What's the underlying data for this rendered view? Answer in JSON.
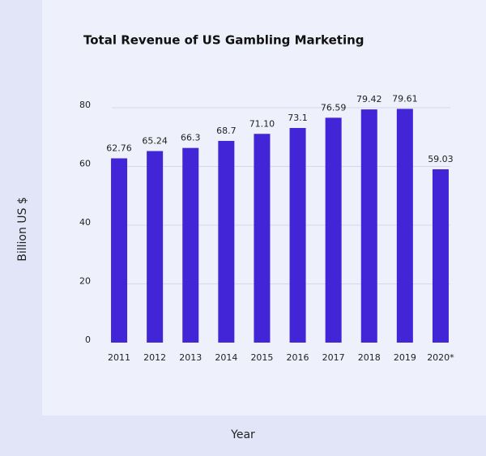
{
  "chart_data": {
    "type": "bar",
    "title": "Total Revenue of US Gambling Marketing",
    "x_label": "Year",
    "y_label": "Billion US $",
    "categories": [
      "2011",
      "2012",
      "2013",
      "2014",
      "2015",
      "2016",
      "2017",
      "2018",
      "2019",
      "2020*"
    ],
    "values": [
      62.76,
      65.24,
      66.3,
      68.7,
      71.1,
      73.1,
      76.59,
      79.42,
      79.61,
      59.03
    ],
    "value_labels": [
      "62.76",
      "65.24",
      "66.3",
      "68.7",
      "71.10",
      "73.1",
      "76.59",
      "79.42",
      "79.61",
      "59.03"
    ],
    "color": "#4125d6",
    "ylim": [
      0,
      80
    ],
    "yticks": [
      0,
      20,
      40,
      60,
      80
    ],
    "grid": true
  }
}
